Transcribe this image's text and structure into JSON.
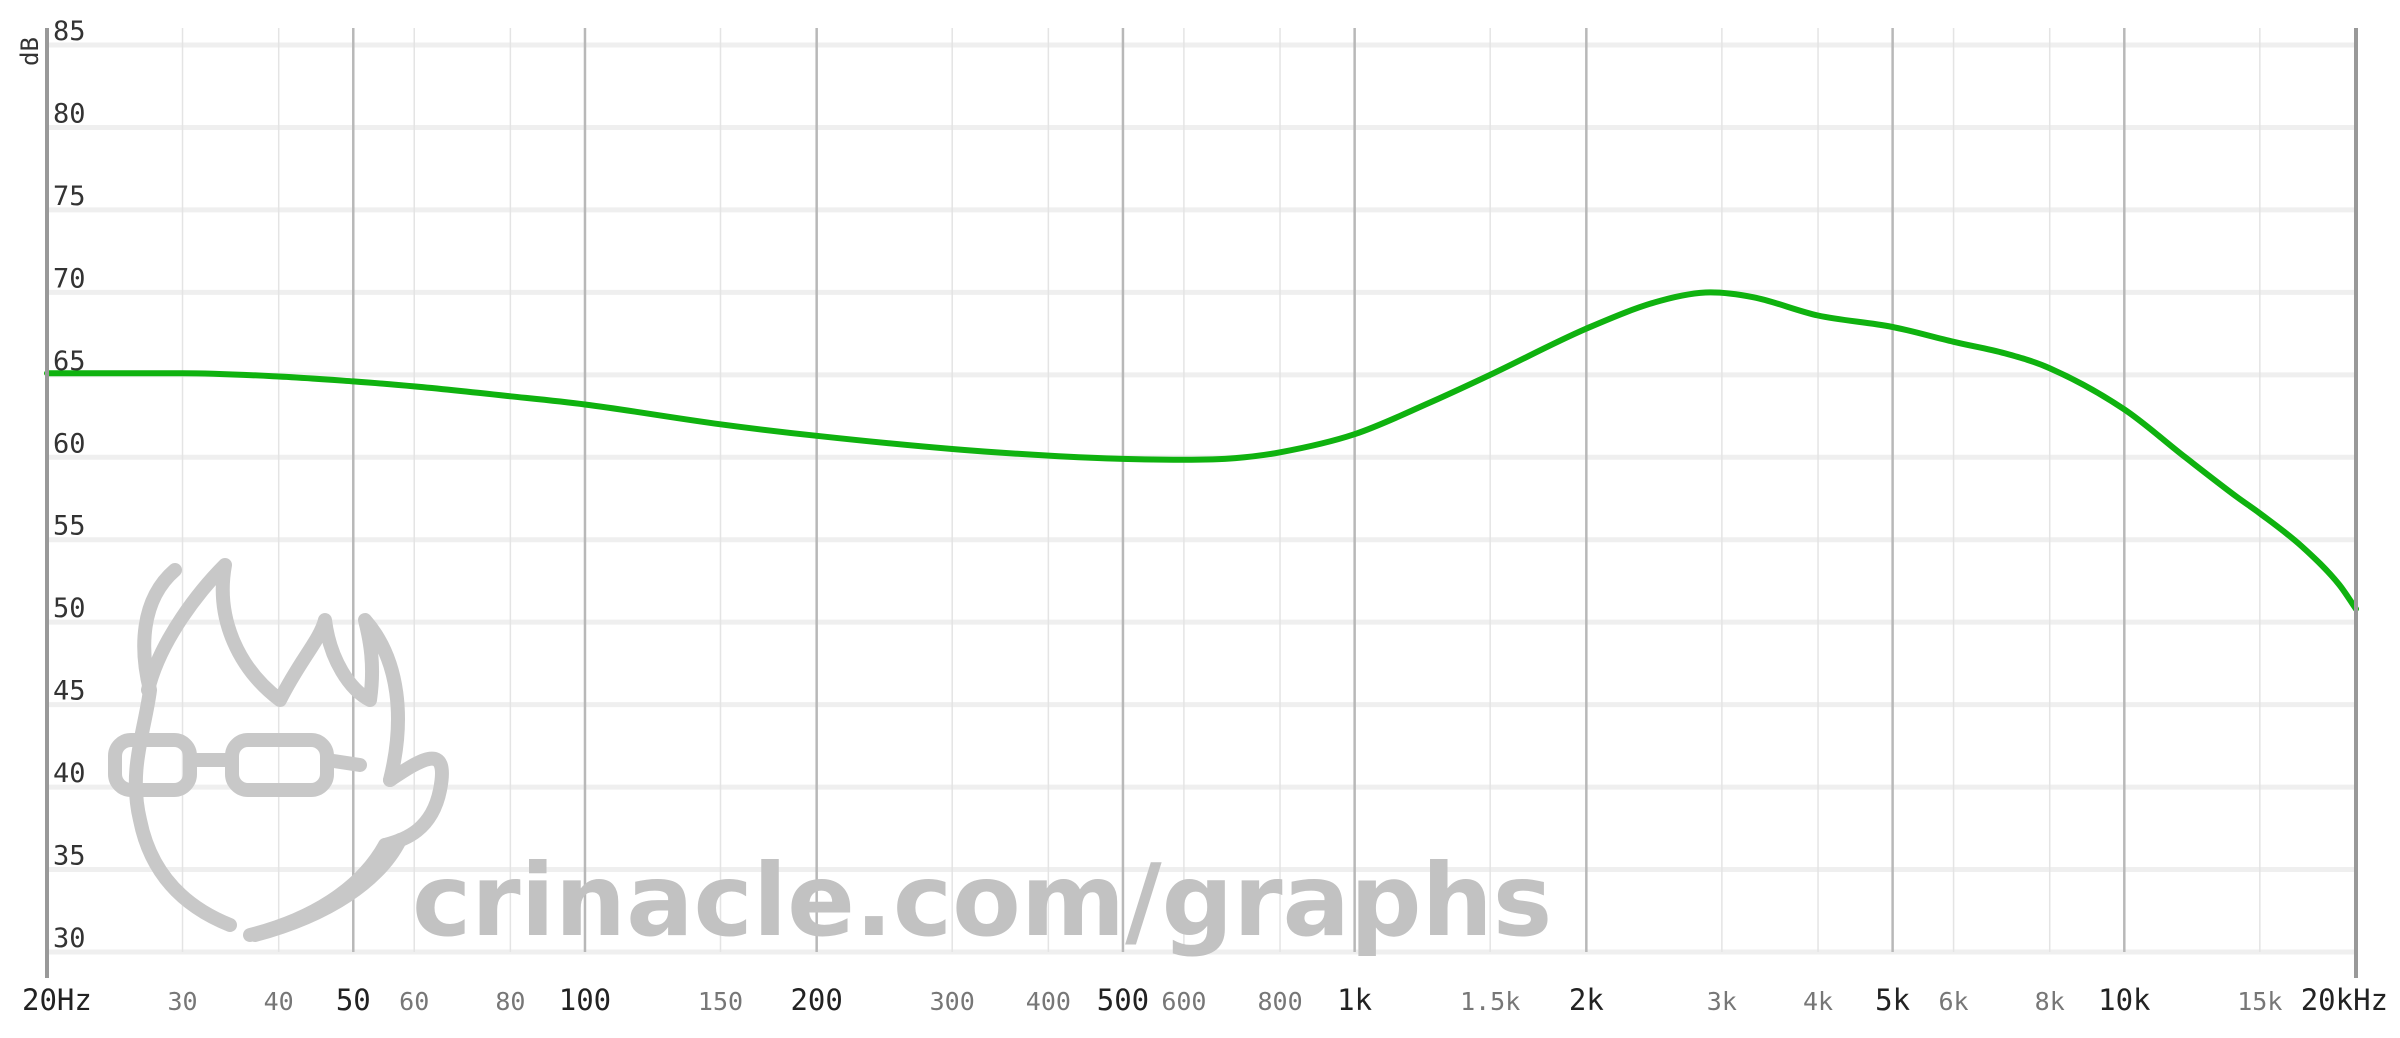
{
  "chart_data": {
    "type": "line",
    "ylabel": "dB",
    "xlabel": "",
    "x_scale": "log",
    "xlim": [
      20,
      20000
    ],
    "ylim": [
      30,
      85
    ],
    "grid": true,
    "y_ticks": [
      {
        "value": 85,
        "label": "85"
      },
      {
        "value": 80,
        "label": "80"
      },
      {
        "value": 75,
        "label": "75"
      },
      {
        "value": 70,
        "label": "70"
      },
      {
        "value": 65,
        "label": "65"
      },
      {
        "value": 60,
        "label": "60"
      },
      {
        "value": 55,
        "label": "55"
      },
      {
        "value": 50,
        "label": "50"
      },
      {
        "value": 45,
        "label": "45"
      },
      {
        "value": 40,
        "label": "40"
      },
      {
        "value": 35,
        "label": "35"
      },
      {
        "value": 30,
        "label": "30"
      }
    ],
    "x_ticks": [
      {
        "value": 20,
        "label": "20Hz",
        "major": true
      },
      {
        "value": 30,
        "label": "30",
        "major": false
      },
      {
        "value": 40,
        "label": "40",
        "major": false
      },
      {
        "value": 50,
        "label": "50",
        "major": true
      },
      {
        "value": 60,
        "label": "60",
        "major": false
      },
      {
        "value": 80,
        "label": "80",
        "major": false
      },
      {
        "value": 100,
        "label": "100",
        "major": true
      },
      {
        "value": 150,
        "label": "150",
        "major": false
      },
      {
        "value": 200,
        "label": "200",
        "major": true
      },
      {
        "value": 300,
        "label": "300",
        "major": false
      },
      {
        "value": 400,
        "label": "400",
        "major": false
      },
      {
        "value": 500,
        "label": "500",
        "major": true
      },
      {
        "value": 600,
        "label": "600",
        "major": false
      },
      {
        "value": 800,
        "label": "800",
        "major": false
      },
      {
        "value": 1000,
        "label": "1k",
        "major": true
      },
      {
        "value": 1500,
        "label": "1.5k",
        "major": false
      },
      {
        "value": 2000,
        "label": "2k",
        "major": true
      },
      {
        "value": 3000,
        "label": "3k",
        "major": false
      },
      {
        "value": 4000,
        "label": "4k",
        "major": false
      },
      {
        "value": 5000,
        "label": "5k",
        "major": true
      },
      {
        "value": 6000,
        "label": "6k",
        "major": false
      },
      {
        "value": 8000,
        "label": "8k",
        "major": false
      },
      {
        "value": 10000,
        "label": "10k",
        "major": true
      },
      {
        "value": 15000,
        "label": "15k",
        "major": false
      },
      {
        "value": 20000,
        "label": "20kHz",
        "major": true
      }
    ],
    "series": [
      {
        "color": "#0fb20f",
        "x": [
          20,
          30,
          40,
          50,
          60,
          80,
          100,
          150,
          200,
          300,
          400,
          500,
          600,
          700,
          800,
          1000,
          1250,
          1500,
          2000,
          2500,
          2900,
          3300,
          4000,
          5000,
          6000,
          7000,
          8000,
          10000,
          12000,
          14000,
          15000,
          17000,
          19000,
          20000
        ],
        "values": [
          65.1,
          65.1,
          64.9,
          64.6,
          64.3,
          63.7,
          63.2,
          62.0,
          61.3,
          60.5,
          60.1,
          59.9,
          59.85,
          59.95,
          60.3,
          61.4,
          63.3,
          65.0,
          67.8,
          69.5,
          70.0,
          69.7,
          68.6,
          67.9,
          67.0,
          66.3,
          65.4,
          62.9,
          60.0,
          57.6,
          56.6,
          54.6,
          52.3,
          50.8
        ]
      }
    ]
  },
  "watermark": {
    "text": "crinacle.com/graphs",
    "color": "#c2c2c2"
  },
  "style": {
    "grid_minor_color": "#e4e4e4",
    "grid_major_color": "#b8b8b8",
    "axis_color": "#999999"
  }
}
